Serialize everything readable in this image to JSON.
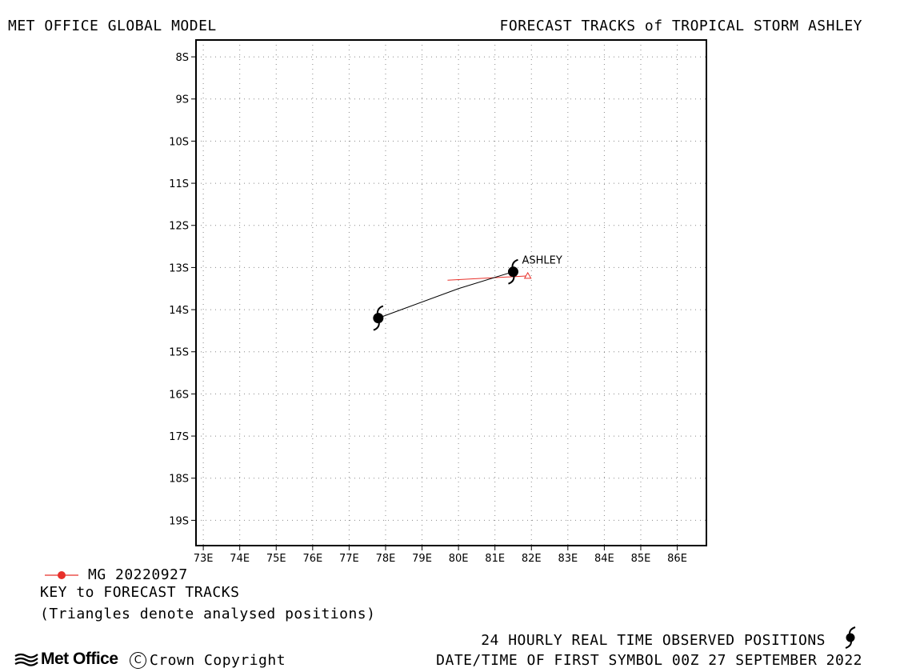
{
  "header": {
    "left_title": "MET OFFICE GLOBAL MODEL",
    "right_title": "FORECAST TRACKS of TROPICAL STORM ASHLEY"
  },
  "map": {
    "lon_range": [
      72.8,
      86.8
    ],
    "lat_range": [
      -7.6,
      -19.6
    ],
    "lon_ticks": [
      73,
      74,
      75,
      76,
      77,
      78,
      79,
      80,
      81,
      82,
      83,
      84,
      85,
      86
    ],
    "lon_tick_labels": [
      "73E",
      "74E",
      "75E",
      "76E",
      "77E",
      "78E",
      "79E",
      "80E",
      "81E",
      "82E",
      "83E",
      "84E",
      "85E",
      "86E"
    ],
    "lat_ticks": [
      -8,
      -9,
      -10,
      -11,
      -12,
      -13,
      -14,
      -15,
      -16,
      -17,
      -18,
      -19
    ],
    "lat_tick_labels": [
      "8S",
      "9S",
      "10S",
      "11S",
      "12S",
      "13S",
      "14S",
      "15S",
      "16S",
      "17S",
      "18S",
      "19S"
    ],
    "grid": "dotted",
    "storm_label": "ASHLEY",
    "observed_track": {
      "color": "#000000",
      "points": [
        [
          81.5,
          -13.1
        ],
        [
          80.0,
          -13.5
        ],
        [
          77.8,
          -14.2
        ]
      ],
      "storm_symbols": [
        [
          81.5,
          -13.1
        ],
        [
          77.8,
          -14.2
        ]
      ]
    },
    "forecast_track": {
      "name": "MG 20220927",
      "color": "#e8302a",
      "points": [
        [
          79.7,
          -13.3
        ],
        [
          81.9,
          -13.2
        ]
      ],
      "analysed_position": [
        81.9,
        -13.2
      ]
    }
  },
  "key": {
    "entry_label": "MG 20220927",
    "entry_color": "#e8302a",
    "title": "KEY to FORECAST TRACKS",
    "note": "(Triangles denote analysed positions)"
  },
  "footer": {
    "observed_label": "24 HOURLY REAL TIME OBSERVED POSITIONS",
    "observed_icon": "hurricane-symbol-icon",
    "brand": "Met Office",
    "brand_icon": "met-office-waves-icon",
    "copyright_symbol": "C",
    "copyright": "Crown Copyright",
    "date_label": "DATE/TIME OF FIRST SYMBOL 00Z 27 SEPTEMBER 2022"
  }
}
